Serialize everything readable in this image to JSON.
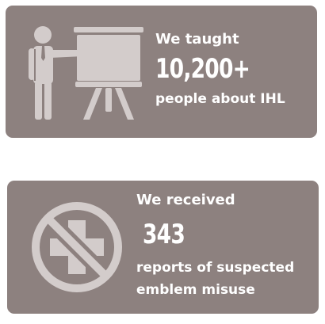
{
  "colors": {
    "card_background": "#8d817f",
    "icon_fill": "#d3cccb",
    "text": "#ffffff"
  },
  "cards": [
    {
      "icon": "presenter-board-icon",
      "lead": "We taught",
      "value": "10,200+",
      "caption": "people about IHL"
    },
    {
      "icon": "prohibited-cross-icon",
      "lead": "We received",
      "value": "343",
      "caption_lines": [
        "reports of suspected",
        "emblem misuse"
      ]
    }
  ]
}
